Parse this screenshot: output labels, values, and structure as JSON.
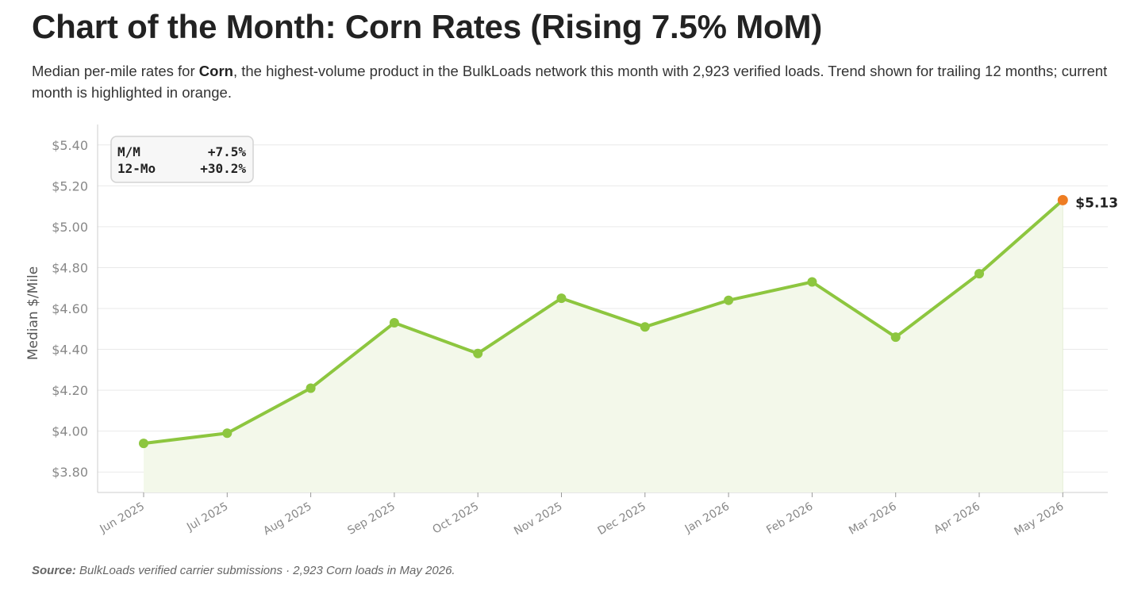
{
  "header": {
    "title": "Chart of the Month: Corn Rates (Rising 7.5% MoM)",
    "subtitle_pre": "Median per-mile rates for ",
    "subtitle_bold": "Corn",
    "subtitle_post": ", the highest-volume product in the BulkLoads network this month with 2,923 verified loads. Trend shown for trailing 12 months; current month is highlighted in orange."
  },
  "footer": {
    "source_label": "Source:",
    "source_text": " BulkLoads verified carrier submissions · 2,923 Corn loads in May 2026."
  },
  "colors": {
    "line": "#8dc63f",
    "fill": "#f3f8ea",
    "highlight": "#ee7d22",
    "grid": "#e9e9e9",
    "axis": "#cccccc"
  },
  "chart_data": {
    "type": "line",
    "ylabel": "Median $/Mile",
    "ylim": [
      3.7,
      5.5
    ],
    "yticks": [
      3.8,
      4.0,
      4.2,
      4.4,
      4.6,
      4.8,
      5.0,
      5.2,
      5.4
    ],
    "ytick_labels": [
      "$3.80",
      "$4.00",
      "$4.20",
      "$4.40",
      "$4.60",
      "$4.80",
      "$5.00",
      "$5.20",
      "$5.40"
    ],
    "grid": true,
    "x": [
      "Jun 2025",
      "Jul 2025",
      "Aug 2025",
      "Sep 2025",
      "Oct 2025",
      "Nov 2025",
      "Dec 2025",
      "Jan 2026",
      "Feb 2026",
      "Mar 2026",
      "Apr 2026",
      "May 2026"
    ],
    "values": [
      3.94,
      3.99,
      4.21,
      4.53,
      4.38,
      4.65,
      4.51,
      4.64,
      4.73,
      4.46,
      4.77,
      5.13
    ],
    "highlight_label": "$5.13",
    "stats": [
      {
        "label": "M/M",
        "value": "+7.5%"
      },
      {
        "label": "12-Mo",
        "value": "+30.2%"
      }
    ],
    "stats_placement": "top-left"
  }
}
